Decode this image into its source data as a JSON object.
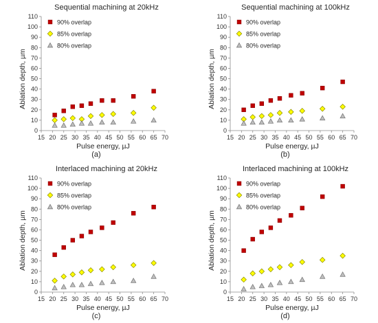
{
  "figure": {
    "chart_data": [
      {
        "type": "scatter",
        "title": "Sequential machining at 20kHz",
        "xlabel": "Pulse energy, µJ",
        "ylabel": "Ablation depth, µm",
        "caption": "(a)",
        "xlim": [
          15,
          70
        ],
        "ylim": [
          0,
          110
        ],
        "xticks": [
          "15",
          "20",
          "25",
          "30",
          "35",
          "40",
          "45",
          "50",
          "55",
          "60",
          "65",
          "70"
        ],
        "yticks": [
          "0",
          "10",
          "20",
          "30",
          "40",
          "50",
          "60",
          "70",
          "80",
          "90",
          "100",
          "110"
        ],
        "grid": false,
        "legend": "top-left",
        "x": [
          21,
          25,
          29,
          33,
          37,
          42,
          47,
          56,
          65
        ],
        "series": [
          {
            "name": "90% overlap",
            "marker": "square",
            "color": "#c00000",
            "values": [
              15,
              19,
              23,
              24,
              26,
              29,
              29,
              33,
              38
            ]
          },
          {
            "name": "85% overlap",
            "marker": "diamond",
            "color": "#ffff00",
            "values": [
              10,
              11,
              12,
              11,
              14,
              15,
              16,
              17,
              22
            ]
          },
          {
            "name": "80% overlap",
            "marker": "triangle",
            "color": "#bfbfbf",
            "values": [
              5,
              5,
              6,
              7,
              7,
              8,
              8,
              9,
              10
            ]
          }
        ]
      },
      {
        "type": "scatter",
        "title": "Sequential machining at 100kHz",
        "xlabel": "Pulse energy, µJ",
        "ylabel": "Ablation depth, µm",
        "caption": "(b)",
        "xlim": [
          15,
          70
        ],
        "ylim": [
          0,
          110
        ],
        "xticks": [
          "15",
          "20",
          "25",
          "30",
          "35",
          "40",
          "45",
          "50",
          "55",
          "60",
          "65",
          "70"
        ],
        "yticks": [
          "0",
          "10",
          "20",
          "30",
          "40",
          "50",
          "60",
          "70",
          "80",
          "90",
          "100",
          "110"
        ],
        "grid": false,
        "legend": "top-left",
        "x": [
          21,
          25,
          29,
          33,
          37,
          42,
          47,
          56,
          65
        ],
        "series": [
          {
            "name": "90% overlap",
            "marker": "square",
            "color": "#c00000",
            "values": [
              20,
              24,
              26,
              29,
              31,
              34,
              36,
              41,
              47
            ]
          },
          {
            "name": "85% overlap",
            "marker": "diamond",
            "color": "#ffff00",
            "values": [
              11,
              13,
              14,
              15,
              17,
              18,
              19,
              21,
              23
            ]
          },
          {
            "name": "80% overlap",
            "marker": "triangle",
            "color": "#bfbfbf",
            "values": [
              7,
              8,
              8,
              9,
              10,
              10,
              11,
              12,
              14
            ]
          }
        ]
      },
      {
        "type": "scatter",
        "title": "Interlaced machining at 20kHz",
        "xlabel": "Pulse energy, µJ",
        "ylabel": "Ablation depth, µm",
        "caption": "(c)",
        "xlim": [
          15,
          70
        ],
        "ylim": [
          0,
          110
        ],
        "xticks": [
          "15",
          "20",
          "25",
          "30",
          "35",
          "40",
          "45",
          "50",
          "55",
          "60",
          "65",
          "70"
        ],
        "yticks": [
          "0",
          "10",
          "20",
          "30",
          "40",
          "50",
          "60",
          "70",
          "80",
          "90",
          "100",
          "110"
        ],
        "grid": false,
        "legend": "top-left",
        "x": [
          21,
          25,
          29,
          33,
          37,
          42,
          47,
          56,
          65
        ],
        "series": [
          {
            "name": "90% overlap",
            "marker": "square",
            "color": "#c00000",
            "values": [
              36,
              43,
              50,
              54,
              58,
              62,
              67,
              76,
              82
            ]
          },
          {
            "name": "85% overlap",
            "marker": "diamond",
            "color": "#ffff00",
            "values": [
              11,
              15,
              17,
              19,
              21,
              22,
              24,
              26,
              28
            ]
          },
          {
            "name": "80% overlap",
            "marker": "triangle",
            "color": "#bfbfbf",
            "values": [
              4,
              5,
              7,
              7,
              8,
              9,
              10,
              11,
              15
            ]
          }
        ]
      },
      {
        "type": "scatter",
        "title": "Interlaced machining at 100kHz",
        "xlabel": "Pulse energy, µJ",
        "ylabel": "Ablation depth, µm",
        "caption": "(d)",
        "xlim": [
          15,
          70
        ],
        "ylim": [
          0,
          110
        ],
        "xticks": [
          "15",
          "20",
          "25",
          "30",
          "35",
          "40",
          "45",
          "50",
          "55",
          "60",
          "65",
          "70"
        ],
        "yticks": [
          "0",
          "10",
          "20",
          "30",
          "40",
          "50",
          "60",
          "70",
          "80",
          "90",
          "100",
          "110"
        ],
        "grid": false,
        "legend": "top-left",
        "x": [
          21,
          25,
          29,
          33,
          37,
          42,
          47,
          56,
          65
        ],
        "series": [
          {
            "name": "90% overlap",
            "marker": "square",
            "color": "#c00000",
            "values": [
              40,
              51,
              58,
              62,
              69,
              74,
              81,
              92,
              102
            ]
          },
          {
            "name": "85% overlap",
            "marker": "diamond",
            "color": "#ffff00",
            "values": [
              12,
              18,
              20,
              22,
              24,
              26,
              29,
              31,
              35
            ]
          },
          {
            "name": "80% overlap",
            "marker": "triangle",
            "color": "#bfbfbf",
            "values": [
              3,
              5,
              6,
              7,
              9,
              10,
              12,
              15,
              17
            ]
          }
        ]
      }
    ]
  }
}
